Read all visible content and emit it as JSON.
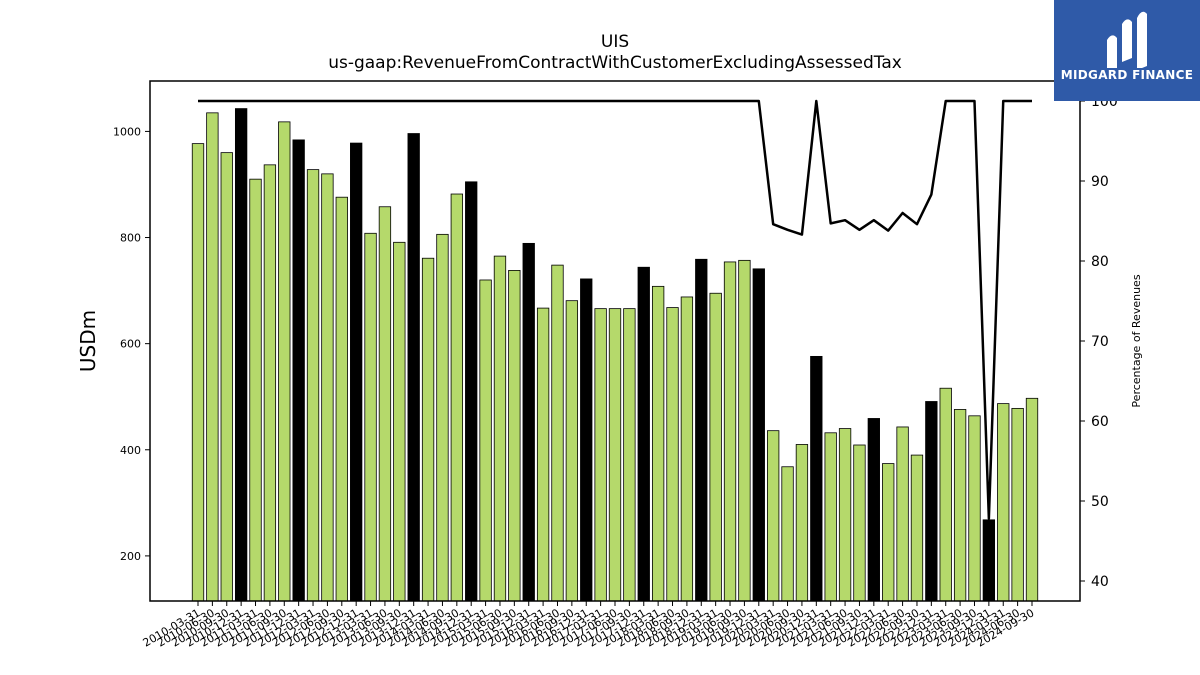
{
  "header": {
    "title_line1": "UIS",
    "title_line2": "us-gaap:RevenueFromContractWithCustomerExcludingAssessedTax"
  },
  "logo": {
    "text": "MIDGARD FINANCE"
  },
  "chart_data": {
    "type": "bar",
    "ylabel": "USDm",
    "y2label": "Percentage of Revenues",
    "ylim": [
      115,
      1095
    ],
    "y2lim": [
      37.5,
      102.5
    ],
    "yticks": [
      200,
      400,
      600,
      800,
      1000
    ],
    "y2ticks": [
      40,
      50,
      60,
      70,
      80,
      90,
      100
    ],
    "colors": {
      "quarter": "#b5d96b",
      "annual": "#000000",
      "line": "#000000"
    },
    "categories": [
      "2010-03-31",
      "2010-06-30",
      "2010-09-30",
      "2010-12-31",
      "2011-03-31",
      "2011-06-30",
      "2011-09-30",
      "2011-12-31",
      "2012-03-31",
      "2012-06-30",
      "2012-09-30",
      "2012-12-31",
      "2013-03-31",
      "2013-06-30",
      "2013-09-30",
      "2013-12-31",
      "2014-03-31",
      "2014-06-30",
      "2014-09-30",
      "2014-12-31",
      "2015-03-31",
      "2015-06-30",
      "2015-09-30",
      "2015-12-31",
      "2016-03-31",
      "2016-06-30",
      "2016-09-30",
      "2016-12-31",
      "2017-03-31",
      "2017-06-30",
      "2017-09-30",
      "2017-12-31",
      "2018-03-31",
      "2018-06-30",
      "2018-09-30",
      "2018-12-31",
      "2019-03-31",
      "2019-06-30",
      "2019-09-30",
      "2019-12-31",
      "2020-03-31",
      "2020-06-30",
      "2020-09-30",
      "2020-12-31",
      "2021-03-31",
      "2021-06-30",
      "2021-09-30",
      "2021-12-31",
      "2022-03-31",
      "2022-06-30",
      "2022-09-30",
      "2022-12-31",
      "2023-03-31",
      "2023-06-30",
      "2023-09-30",
      "2023-12-31",
      "2024-03-31",
      "2024-06-30",
      "2024-09-30"
    ],
    "values": [
      977,
      1035,
      960,
      1043,
      910,
      937,
      1018,
      984,
      928,
      920,
      876,
      978,
      808,
      858,
      791,
      996,
      761,
      806,
      882,
      905,
      720,
      765,
      738,
      789,
      667,
      748,
      681,
      722,
      666,
      666,
      666,
      744,
      708,
      668,
      688,
      759,
      695,
      754,
      757,
      741,
      436,
      368,
      410,
      576,
      432,
      440,
      409,
      459,
      374,
      443,
      390,
      491,
      516,
      476,
      464,
      268,
      487,
      478,
      497
    ],
    "bar_kind": [
      "q",
      "q",
      "q",
      "a",
      "q",
      "q",
      "q",
      "a",
      "q",
      "q",
      "q",
      "a",
      "q",
      "q",
      "q",
      "a",
      "q",
      "q",
      "q",
      "a",
      "q",
      "q",
      "q",
      "a",
      "q",
      "q",
      "q",
      "a",
      "q",
      "q",
      "q",
      "a",
      "q",
      "q",
      "q",
      "a",
      "q",
      "q",
      "q",
      "a",
      "q",
      "q",
      "q",
      "a",
      "q",
      "q",
      "q",
      "a",
      "q",
      "q",
      "q",
      "a",
      "q",
      "q",
      "q",
      "a",
      "q",
      "q",
      "q"
    ],
    "line_values": [
      100,
      100,
      100,
      100,
      100,
      100,
      100,
      100,
      100,
      100,
      100,
      100,
      100,
      100,
      100,
      100,
      100,
      100,
      100,
      100,
      100,
      100,
      100,
      100,
      100,
      100,
      100,
      100,
      100,
      100,
      100,
      100,
      100,
      100,
      100,
      100,
      100,
      100,
      100,
      100,
      84.6,
      83.9,
      83.3,
      100,
      84.7,
      85.1,
      83.9,
      85.1,
      83.8,
      86.0,
      84.6,
      88.3,
      100,
      100,
      100,
      47.8,
      100,
      100,
      100
    ]
  }
}
